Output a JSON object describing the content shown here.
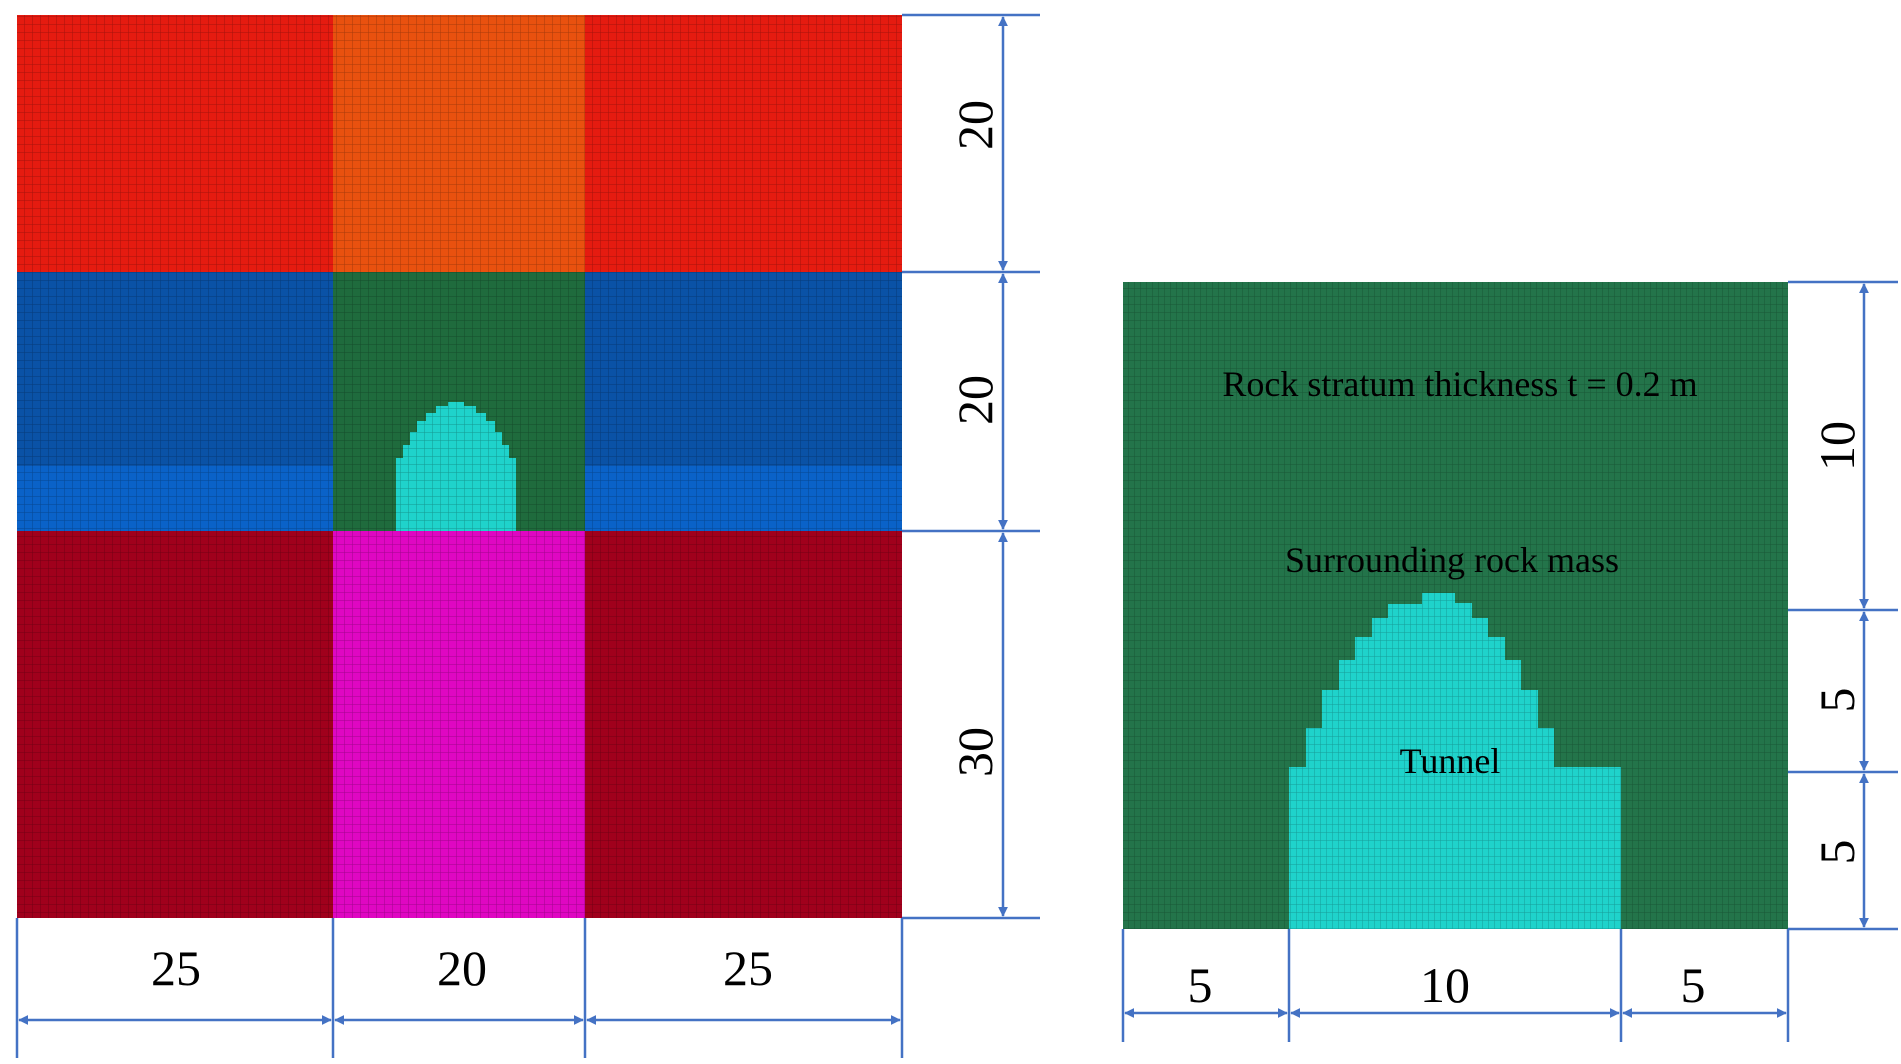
{
  "colors": {
    "top_side": "#e51b10",
    "top_center": "#e9510f",
    "mid_side_upper": "#0a52a6",
    "mid_side_lower": "#0a62c8",
    "mid_center": "#1f6b3d",
    "bottom_side": "#a0001c",
    "bottom_center": "#df07c2",
    "rock_mass": "#23744a",
    "tunnel": "#1fd3cb",
    "mesh_line": "#000000",
    "dim_line": "#4472c4"
  },
  "left_model": {
    "width_dims": [
      "25",
      "20",
      "25"
    ],
    "height_dims": [
      "20",
      "20",
      "30"
    ]
  },
  "right_model": {
    "width_dims": [
      "5",
      "10",
      "5"
    ],
    "height_dims": [
      "10",
      "5",
      "5"
    ],
    "labels": {
      "thickness": "Rock stratum thickness t = 0.2 m",
      "rock": "Surrounding rock mass",
      "tunnel": "Tunnel"
    }
  }
}
